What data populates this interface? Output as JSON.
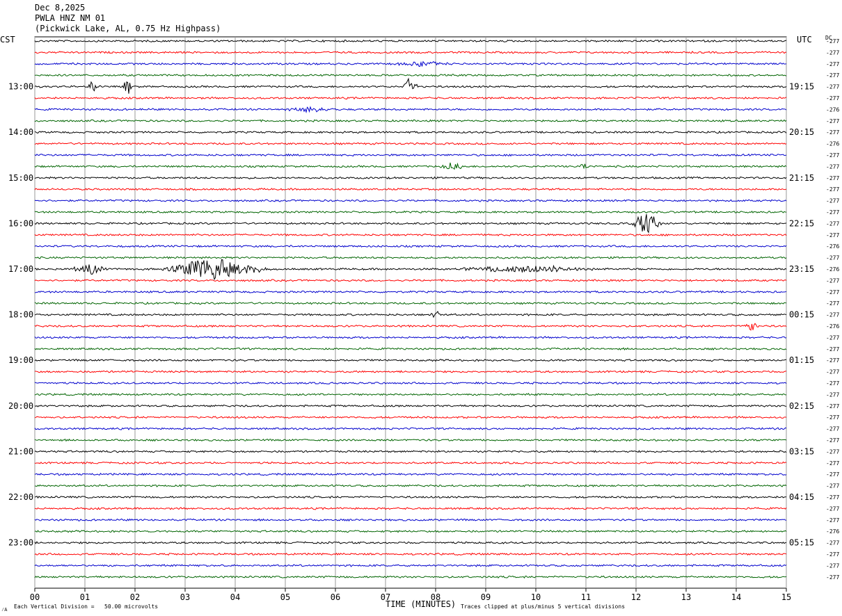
{
  "header": {
    "date": "Dec 8,2025",
    "station": "PWLA HNZ NM 01",
    "location": "(Pickwick Lake, AL, 0.75 Hz Highpass)"
  },
  "left_axis_label": "CST",
  "right_axis_label": "UTC",
  "dc_label": "DC",
  "footer": {
    "scale_note": "Each Vertical Division =   50.00 microvolts",
    "clip_note": "Traces clipped at plus/minus 5 vertical divisions",
    "corner_mark": "⁄A"
  },
  "colors": {
    "trace_cycle": [
      "#000000",
      "#ff0000",
      "#0000cc",
      "#006400"
    ],
    "grid": "#999999"
  },
  "chart_data": {
    "type": "line",
    "title": "PWLA HNZ NM 01",
    "xlabel": "TIME (MINUTES)",
    "xlim": [
      0,
      15
    ],
    "x_ticks": [
      "00",
      "01",
      "02",
      "03",
      "04",
      "05",
      "06",
      "07",
      "08",
      "09",
      "10",
      "11",
      "12",
      "13",
      "14",
      "15"
    ],
    "rows_per_hour": 4,
    "minutes_per_row": 15,
    "cst_hour_labels": [
      "13:00",
      "14:00",
      "15:00",
      "16:00",
      "17:00",
      "18:00",
      "19:00",
      "20:00",
      "21:00",
      "22:00",
      "23:00"
    ],
    "utc_hour_labels": [
      "19:15",
      "20:15",
      "21:15",
      "22:15",
      "23:15",
      "00:15",
      "01:15",
      "02:15",
      "03:15",
      "04:15",
      "05:15"
    ],
    "dc_offsets": [
      "-277",
      "-277",
      "-277",
      "-277",
      "-277",
      "-277",
      "-276",
      "-277",
      "-277",
      "-276",
      "-277",
      "-277",
      "-277",
      "-277",
      "-277",
      "-277",
      "-277",
      "-277",
      "-276",
      "-277",
      "-276",
      "-277",
      "-277",
      "-277",
      "-277",
      "-276",
      "-277",
      "-277",
      "-277",
      "-277",
      "-277",
      "-277",
      "-277",
      "-277",
      "-277",
      "-277",
      "-277",
      "-277",
      "-277",
      "-277",
      "-277",
      "-277",
      "-277",
      "-276",
      "-277",
      "-277",
      "-277",
      "-277"
    ],
    "events": [
      {
        "row": 4,
        "minute": 1.15,
        "amplitude": 0.8,
        "duration": 0.1
      },
      {
        "row": 4,
        "minute": 1.85,
        "amplitude": 0.8,
        "duration": 0.1
      },
      {
        "row": 4,
        "minute": 7.5,
        "amplitude": 1.0,
        "duration": 0.15
      },
      {
        "row": 6,
        "minute": 5.5,
        "amplitude": 0.25,
        "duration": 0.6
      },
      {
        "row": 2,
        "minute": 7.7,
        "amplitude": 0.25,
        "duration": 0.6
      },
      {
        "row": 11,
        "minute": 8.3,
        "amplitude": 0.4,
        "duration": 0.3
      },
      {
        "row": 11,
        "minute": 10.95,
        "amplitude": 0.4,
        "duration": 0.1
      },
      {
        "row": 16,
        "minute": 12.2,
        "amplitude": 1.0,
        "duration": 0.35
      },
      {
        "row": 20,
        "minute": 3.5,
        "amplitude": 1.1,
        "duration": 1.0
      },
      {
        "row": 20,
        "minute": 1.1,
        "amplitude": 0.45,
        "duration": 0.4
      },
      {
        "row": 20,
        "minute": 4.3,
        "amplitude": 0.4,
        "duration": 0.5
      },
      {
        "row": 20,
        "minute": 9.8,
        "amplitude": 0.35,
        "duration": 1.5
      },
      {
        "row": 24,
        "minute": 8.0,
        "amplitude": 0.6,
        "duration": 0.1
      },
      {
        "row": 25,
        "minute": 14.3,
        "amplitude": 0.5,
        "duration": 0.15
      }
    ]
  }
}
